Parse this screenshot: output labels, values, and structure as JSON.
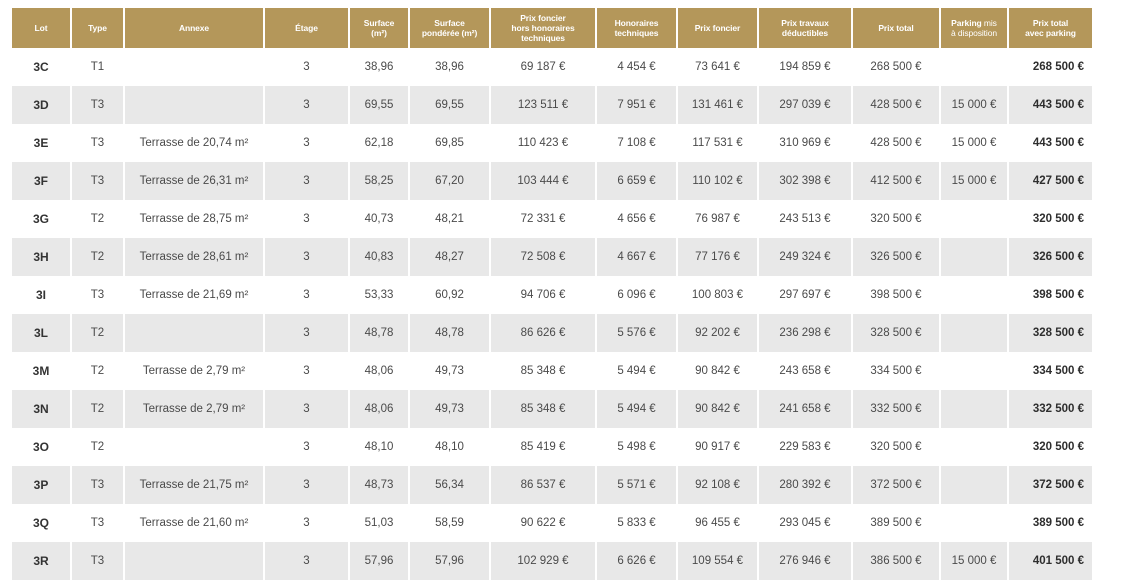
{
  "colors": {
    "header": "#b4975a",
    "stripe": "#e8e8e8"
  },
  "headers": {
    "lot": "Lot",
    "type": "Type",
    "annexe": "Annexe",
    "etage": "Étage",
    "surface": [
      "Surface",
      "(m²)"
    ],
    "surface_ponderee": [
      "Surface",
      "pondérée (m²)"
    ],
    "prix_foncier_hors": [
      "Prix foncier",
      "hors honoraires",
      "techniques"
    ],
    "honoraires": [
      "Honoraires",
      "techniques"
    ],
    "prix_foncier": "Prix foncier",
    "prix_travaux": [
      "Prix travaux",
      "déductibles"
    ],
    "prix_total": "Prix total",
    "parking_bold": "Parking",
    "parking_light_1": " mis",
    "parking_light_2": "à disposition",
    "prix_total_parking": [
      "Prix total",
      "avec parking"
    ]
  },
  "rows": [
    {
      "lot": "3C",
      "type": "T1",
      "annexe": "",
      "etage": "3",
      "surface": "38,96",
      "surface_ponderee": "38,96",
      "prix_foncier_hors": "69 187 €",
      "honoraires": "4 454 €",
      "prix_foncier": "73 641 €",
      "prix_travaux": "194 859 €",
      "prix_total": "268 500 €",
      "parking": "",
      "prix_total_parking": "268 500 €"
    },
    {
      "lot": "3D",
      "type": "T3",
      "annexe": "",
      "etage": "3",
      "surface": "69,55",
      "surface_ponderee": "69,55",
      "prix_foncier_hors": "123 511 €",
      "honoraires": "7 951 €",
      "prix_foncier": "131 461 €",
      "prix_travaux": "297 039 €",
      "prix_total": "428 500 €",
      "parking": "15 000 €",
      "prix_total_parking": "443 500 €"
    },
    {
      "lot": "3E",
      "type": "T3",
      "annexe": "Terrasse de 20,74 m²",
      "etage": "3",
      "surface": "62,18",
      "surface_ponderee": "69,85",
      "prix_foncier_hors": "110 423 €",
      "honoraires": "7 108 €",
      "prix_foncier": "117 531 €",
      "prix_travaux": "310 969 €",
      "prix_total": "428 500 €",
      "parking": "15 000 €",
      "prix_total_parking": "443 500 €"
    },
    {
      "lot": "3F",
      "type": "T3",
      "annexe": "Terrasse de 26,31 m²",
      "etage": "3",
      "surface": "58,25",
      "surface_ponderee": "67,20",
      "prix_foncier_hors": "103 444 €",
      "honoraires": "6 659 €",
      "prix_foncier": "110 102 €",
      "prix_travaux": "302 398 €",
      "prix_total": "412 500 €",
      "parking": "15 000 €",
      "prix_total_parking": "427 500 €"
    },
    {
      "lot": "3G",
      "type": "T2",
      "annexe": "Terrasse de 28,75 m²",
      "etage": "3",
      "surface": "40,73",
      "surface_ponderee": "48,21",
      "prix_foncier_hors": "72 331 €",
      "honoraires": "4 656 €",
      "prix_foncier": "76 987 €",
      "prix_travaux": "243 513 €",
      "prix_total": "320 500 €",
      "parking": "",
      "prix_total_parking": "320 500 €"
    },
    {
      "lot": "3H",
      "type": "T2",
      "annexe": "Terrasse de 28,61 m²",
      "etage": "3",
      "surface": "40,83",
      "surface_ponderee": "48,27",
      "prix_foncier_hors": "72 508 €",
      "honoraires": "4 667 €",
      "prix_foncier": "77 176 €",
      "prix_travaux": "249 324 €",
      "prix_total": "326 500 €",
      "parking": "",
      "prix_total_parking": "326 500 €"
    },
    {
      "lot": "3I",
      "type": "T3",
      "annexe": "Terrasse de 21,69 m²",
      "etage": "3",
      "surface": "53,33",
      "surface_ponderee": "60,92",
      "prix_foncier_hors": "94 706 €",
      "honoraires": "6 096 €",
      "prix_foncier": "100 803 €",
      "prix_travaux": "297 697 €",
      "prix_total": "398 500 €",
      "parking": "",
      "prix_total_parking": "398 500 €"
    },
    {
      "lot": "3L",
      "type": "T2",
      "annexe": "",
      "etage": "3",
      "surface": "48,78",
      "surface_ponderee": "48,78",
      "prix_foncier_hors": "86 626 €",
      "honoraires": "5 576 €",
      "prix_foncier": "92 202 €",
      "prix_travaux": "236 298 €",
      "prix_total": "328 500 €",
      "parking": "",
      "prix_total_parking": "328 500 €"
    },
    {
      "lot": "3M",
      "type": "T2",
      "annexe": "Terrasse de 2,79 m²",
      "etage": "3",
      "surface": "48,06",
      "surface_ponderee": "49,73",
      "prix_foncier_hors": "85 348 €",
      "honoraires": "5 494 €",
      "prix_foncier": "90 842 €",
      "prix_travaux": "243 658 €",
      "prix_total": "334 500 €",
      "parking": "",
      "prix_total_parking": "334 500 €"
    },
    {
      "lot": "3N",
      "type": "T2",
      "annexe": "Terrasse de 2,79 m²",
      "etage": "3",
      "surface": "48,06",
      "surface_ponderee": "49,73",
      "prix_foncier_hors": "85 348 €",
      "honoraires": "5 494 €",
      "prix_foncier": "90 842 €",
      "prix_travaux": "241 658 €",
      "prix_total": "332 500 €",
      "parking": "",
      "prix_total_parking": "332 500 €"
    },
    {
      "lot": "3O",
      "type": "T2",
      "annexe": "",
      "etage": "3",
      "surface": "48,10",
      "surface_ponderee": "48,10",
      "prix_foncier_hors": "85 419 €",
      "honoraires": "5 498 €",
      "prix_foncier": "90 917 €",
      "prix_travaux": "229 583 €",
      "prix_total": "320 500 €",
      "parking": "",
      "prix_total_parking": "320 500 €"
    },
    {
      "lot": "3P",
      "type": "T3",
      "annexe": "Terrasse de 21,75 m²",
      "etage": "3",
      "surface": "48,73",
      "surface_ponderee": "56,34",
      "prix_foncier_hors": "86 537 €",
      "honoraires": "5 571 €",
      "prix_foncier": "92 108 €",
      "prix_travaux": "280 392 €",
      "prix_total": "372 500 €",
      "parking": "",
      "prix_total_parking": "372 500 €"
    },
    {
      "lot": "3Q",
      "type": "T3",
      "annexe": "Terrasse de 21,60 m²",
      "etage": "3",
      "surface": "51,03",
      "surface_ponderee": "58,59",
      "prix_foncier_hors": "90 622 €",
      "honoraires": "5 833 €",
      "prix_foncier": "96 455 €",
      "prix_travaux": "293 045 €",
      "prix_total": "389 500 €",
      "parking": "",
      "prix_total_parking": "389 500 €"
    },
    {
      "lot": "3R",
      "type": "T3",
      "annexe": "",
      "etage": "3",
      "surface": "57,96",
      "surface_ponderee": "57,96",
      "prix_foncier_hors": "102 929 €",
      "honoraires": "6 626 €",
      "prix_foncier": "109 554 €",
      "prix_travaux": "276 946 €",
      "prix_total": "386 500 €",
      "parking": "15 000 €",
      "prix_total_parking": "401 500 €"
    }
  ]
}
